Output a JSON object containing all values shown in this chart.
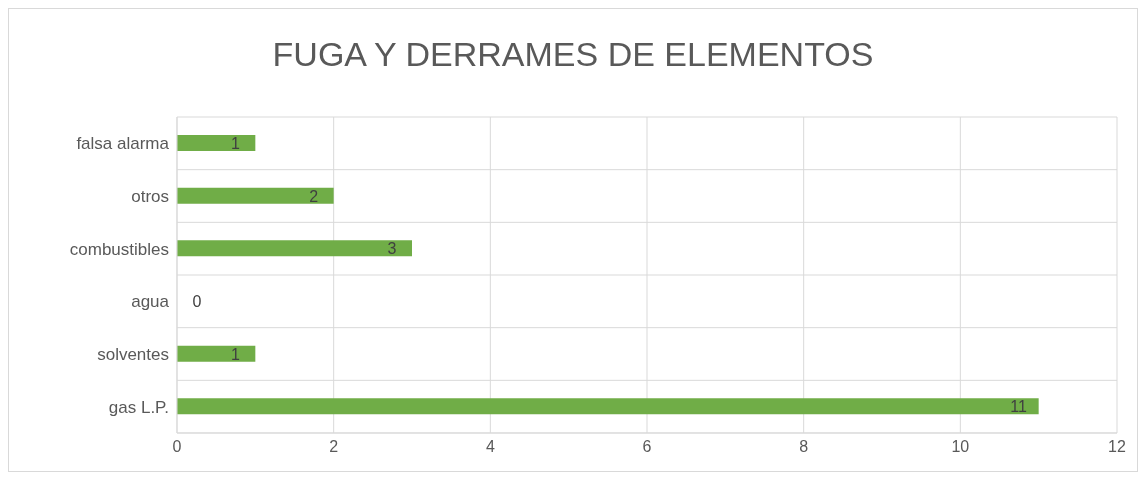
{
  "chart_data": {
    "type": "bar",
    "orientation": "horizontal",
    "title": "FUGA Y DERRAMES DE ELEMENTOS",
    "categories": [
      "falsa alarma",
      "otros",
      "combustibles",
      "agua",
      "solventes",
      "gas L.P."
    ],
    "values": [
      1,
      2,
      3,
      0,
      1,
      11
    ],
    "color": "#70ad47",
    "xlim": [
      0,
      12
    ],
    "xticks": [
      0,
      2,
      4,
      6,
      8,
      10,
      12
    ],
    "grid": true,
    "data_labels": true
  }
}
